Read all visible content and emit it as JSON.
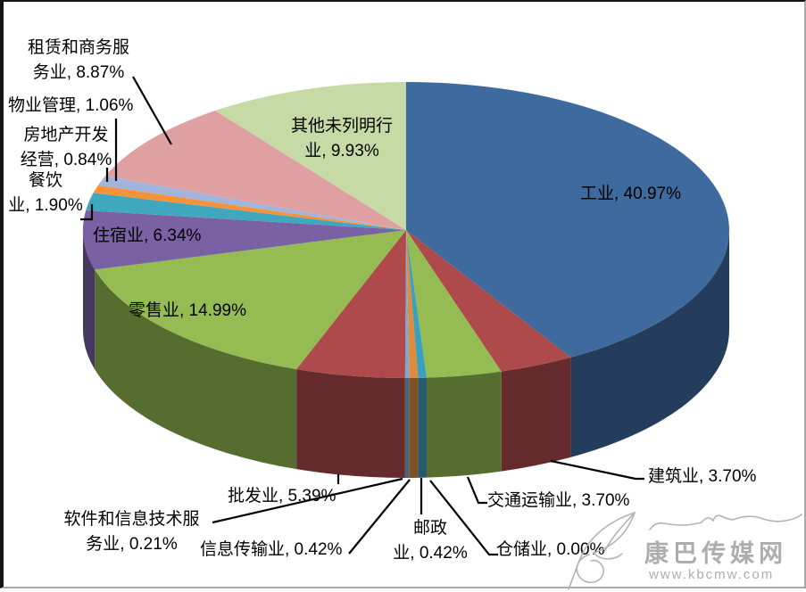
{
  "chart_data": {
    "type": "pie",
    "is_3d": true,
    "title": "",
    "legend": "none",
    "labels_format": "category, percent",
    "start_angle_deg": 0,
    "direction": "clockwise",
    "slices": [
      {
        "name": "工业",
        "pct": 40.97,
        "color": "#3F6A9E",
        "label_lines": [
          "工业, 40.97%"
        ]
      },
      {
        "name": "建筑业",
        "pct": 3.7,
        "color": "#AE4A4B",
        "label_lines": [
          "建筑业, 3.70%"
        ]
      },
      {
        "name": "交通运输业",
        "pct": 3.7,
        "color": "#94BC52",
        "label_lines": [
          "交通运输业, 3.70%"
        ]
      },
      {
        "name": "仓储业",
        "pct": 0.0,
        "color": "#7A61A4",
        "label_lines": [
          "仓储业, 0.00%"
        ]
      },
      {
        "name": "邮政业",
        "pct": 0.42,
        "color": "#3D9FBE",
        "label_lines": [
          "邮政",
          "业, 0.42%"
        ]
      },
      {
        "name": "信息传输业",
        "pct": 0.42,
        "color": "#E08B3B",
        "label_lines": [
          "信息传输业, 0.42%"
        ]
      },
      {
        "name": "软件和信息技术服务业",
        "pct": 0.21,
        "color": "#7FA8CE",
        "label_lines": [
          "软件和信息技术服",
          "务业, 0.21%"
        ]
      },
      {
        "name": "批发业",
        "pct": 5.39,
        "color": "#AE4A4B",
        "label_lines": [
          "批发业, 5.39%"
        ]
      },
      {
        "name": "零售业",
        "pct": 14.99,
        "color": "#94BC52",
        "label_lines": [
          "零售业, 14.99%"
        ]
      },
      {
        "name": "住宿业",
        "pct": 6.34,
        "color": "#7A61A4",
        "label_lines": [
          "住宿业, 6.34%"
        ]
      },
      {
        "name": "餐饮业",
        "pct": 1.9,
        "color": "#3FA8BE",
        "label_lines": [
          "餐饮",
          "业, 1.90%"
        ]
      },
      {
        "name": "房地产开发经营",
        "pct": 0.84,
        "color": "#F5933B",
        "label_lines": [
          "房地产开发",
          "经营, 0.84%"
        ]
      },
      {
        "name": "物业管理",
        "pct": 1.06,
        "color": "#A3B4DC",
        "label_lines": [
          "物业管理, 1.06%"
        ]
      },
      {
        "name": "租赁和商务服务业",
        "pct": 8.87,
        "color": "#DFA0A1",
        "label_lines": [
          "租赁和商务服",
          "务业, 8.87%"
        ]
      },
      {
        "name": "其他未列明行业",
        "pct": 9.93,
        "color": "#C6DAA6",
        "label_lines": [
          "其他未列明行",
          "业, 9.93%"
        ]
      }
    ]
  },
  "watermark": {
    "site_name": "康巴传媒网",
    "site_url": "www.kbcmw.com"
  }
}
